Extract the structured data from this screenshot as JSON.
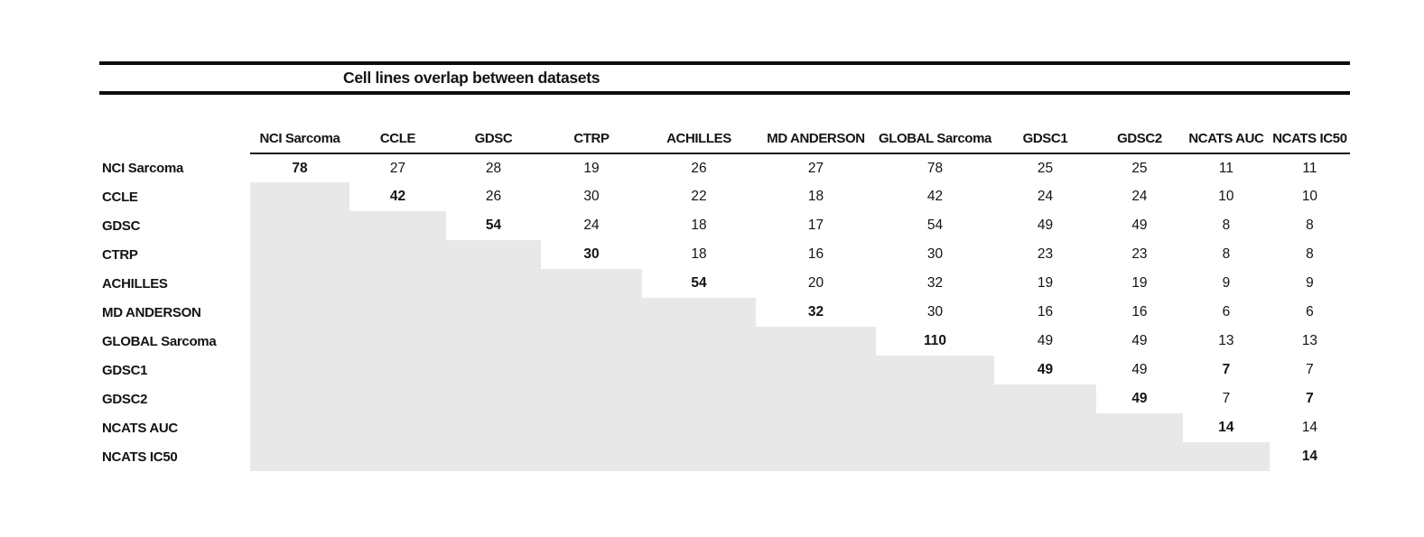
{
  "chart_data": {
    "type": "table",
    "title": "Cell lines overlap between datasets",
    "columns": [
      "NCI Sarcoma",
      "CCLE",
      "GDSC",
      "CTRP",
      "ACHILLES",
      "MD ANDERSON",
      "GLOBAL Sarcoma",
      "GDSC1",
      "GDSC2",
      "NCATS AUC",
      "NCATS IC50"
    ],
    "rows": [
      {
        "label": "NCI Sarcoma",
        "values": [
          78,
          27,
          28,
          19,
          26,
          27,
          78,
          25,
          25,
          11,
          11
        ],
        "bold_cols": [
          0
        ]
      },
      {
        "label": "CCLE",
        "values": [
          null,
          42,
          26,
          30,
          22,
          18,
          42,
          24,
          24,
          10,
          10
        ],
        "bold_cols": [
          1
        ]
      },
      {
        "label": "GDSC",
        "values": [
          null,
          null,
          54,
          24,
          18,
          17,
          54,
          49,
          49,
          8,
          8
        ],
        "bold_cols": [
          2
        ]
      },
      {
        "label": "CTRP",
        "values": [
          null,
          null,
          null,
          30,
          18,
          16,
          30,
          23,
          23,
          8,
          8
        ],
        "bold_cols": [
          3
        ]
      },
      {
        "label": "ACHILLES",
        "values": [
          null,
          null,
          null,
          null,
          54,
          20,
          32,
          19,
          19,
          9,
          9
        ],
        "bold_cols": [
          4
        ]
      },
      {
        "label": "MD ANDERSON",
        "values": [
          null,
          null,
          null,
          null,
          null,
          32,
          30,
          16,
          16,
          6,
          6
        ],
        "bold_cols": [
          5
        ]
      },
      {
        "label": "GLOBAL Sarcoma",
        "values": [
          null,
          null,
          null,
          null,
          null,
          null,
          110,
          49,
          49,
          13,
          13
        ],
        "bold_cols": [
          6
        ]
      },
      {
        "label": "GDSC1",
        "values": [
          null,
          null,
          null,
          null,
          null,
          null,
          null,
          49,
          49,
          7,
          7
        ],
        "bold_cols": [
          7,
          9
        ]
      },
      {
        "label": "GDSC2",
        "values": [
          null,
          null,
          null,
          null,
          null,
          null,
          null,
          null,
          49,
          7,
          7
        ],
        "bold_cols": [
          8,
          10
        ]
      },
      {
        "label": "NCATS AUC",
        "values": [
          null,
          null,
          null,
          null,
          null,
          null,
          null,
          null,
          null,
          14,
          14
        ],
        "bold_cols": [
          9
        ]
      },
      {
        "label": "NCATS IC50",
        "values": [
          null,
          null,
          null,
          null,
          null,
          null,
          null,
          null,
          null,
          null,
          14
        ],
        "bold_cols": [
          10
        ]
      }
    ],
    "layout": {
      "matrix_form": "upper-triangular",
      "lower_triangle": "shaded-empty",
      "grid": false,
      "column_width_percents": [
        12.06,
        7.94,
        7.73,
        7.58,
        8.09,
        9.1,
        9.6,
        9.46,
        8.16,
        6.93,
        6.93,
        6.43
      ]
    },
    "colors": {
      "shaded_cell": "#e8e8e8",
      "rule": "#0d0d0d",
      "text": "#141414",
      "background": "#ffffff"
    }
  }
}
